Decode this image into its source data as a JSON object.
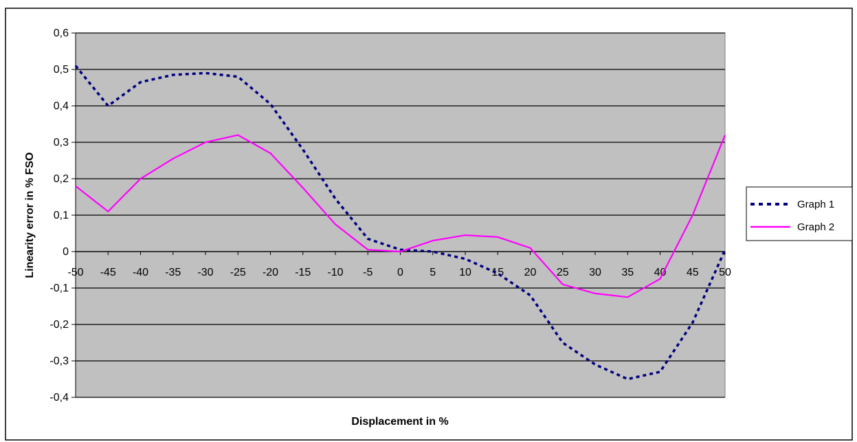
{
  "chart_data": {
    "type": "line",
    "xlabel": "Displacement in %",
    "ylabel": "Linearity error in % FSO",
    "categories": [
      "-50",
      "-45",
      "-40",
      "-35",
      "-30",
      "-25",
      "-20",
      "-15",
      "-10",
      "-5",
      "0",
      "5",
      "10",
      "15",
      "20",
      "25",
      "30",
      "35",
      "40",
      "45",
      "50"
    ],
    "ylim": [
      -0.4,
      0.6
    ],
    "yticks": [
      "0,6",
      "0,5",
      "0,4",
      "0,3",
      "0,2",
      "0,1",
      "0",
      "-0,1",
      "-0,2",
      "-0,3",
      "-0,4"
    ],
    "ytick_values": [
      0.6,
      0.5,
      0.4,
      0.3,
      0.2,
      0.1,
      0,
      -0.1,
      -0.2,
      -0.3,
      -0.4
    ],
    "grid": "horizontal",
    "plot_background": "#c0c0c0",
    "legend_position": "right",
    "series": [
      {
        "name": "Graph 1",
        "color": "#000080",
        "style": "dotted",
        "values": [
          0.51,
          0.4,
          0.465,
          0.485,
          0.49,
          0.48,
          0.405,
          0.28,
          0.145,
          0.035,
          0.005,
          0.0,
          -0.02,
          -0.06,
          -0.12,
          -0.25,
          -0.31,
          -0.35,
          -0.33,
          -0.195,
          0.005
        ]
      },
      {
        "name": "Graph 2",
        "color": "#ff00ff",
        "style": "solid",
        "values": [
          0.18,
          0.11,
          0.2,
          0.255,
          0.3,
          0.32,
          0.27,
          0.175,
          0.075,
          0.005,
          0.0,
          0.03,
          0.045,
          0.04,
          0.01,
          -0.09,
          -0.115,
          -0.125,
          -0.075,
          0.1,
          0.32
        ]
      }
    ]
  }
}
